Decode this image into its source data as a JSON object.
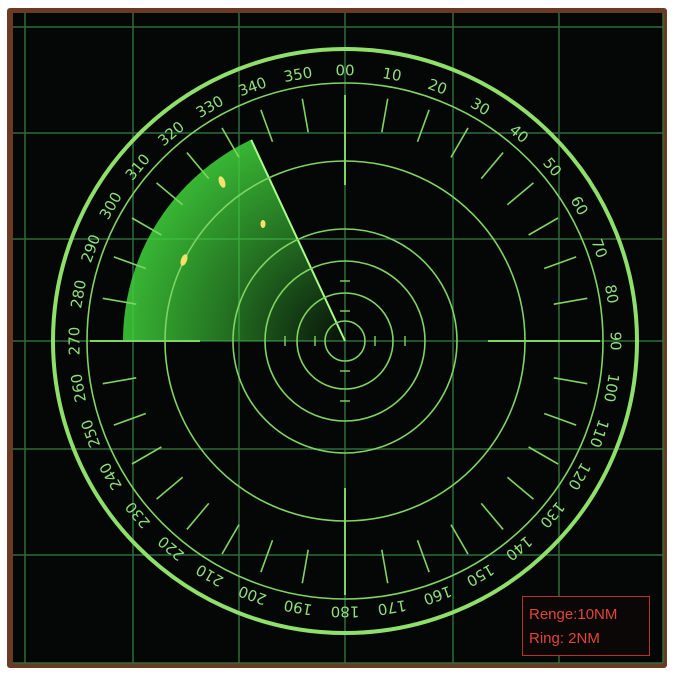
{
  "radar": {
    "colors": {
      "background": "#050706",
      "frame": "#6b3a24",
      "grid": "#2f6b3a",
      "ring": "#7fd462",
      "outer_ring": "#8fe06a",
      "sweep": "#3fcf3a",
      "target": "#f4e36a",
      "info_text": "#e0463a"
    },
    "compass_labels": [
      "00",
      "10",
      "20",
      "30",
      "40",
      "50",
      "60",
      "70",
      "80",
      "90",
      "100",
      "110",
      "120",
      "130",
      "140",
      "150",
      "160",
      "170",
      "180",
      "190",
      "200",
      "210",
      "220",
      "230",
      "240",
      "250",
      "260",
      "270",
      "280",
      "290",
      "300",
      "310",
      "320",
      "330",
      "340",
      "350"
    ],
    "sweep": {
      "start_bearing": 270,
      "end_bearing": 335
    },
    "targets_count": 3
  },
  "info_box": {
    "range": "Renge:10NM",
    "ring": "Ring: 2NM"
  }
}
